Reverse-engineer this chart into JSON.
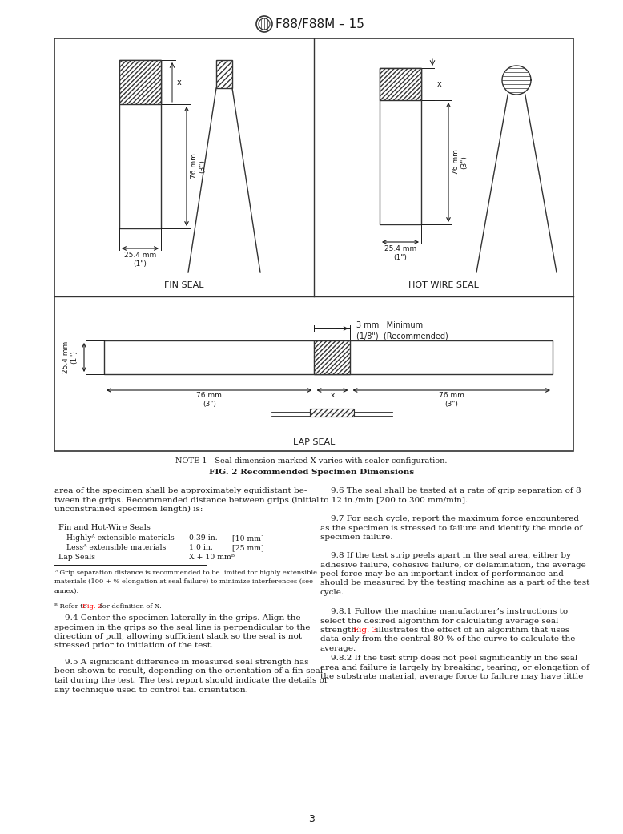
{
  "title": "F88/F88M – 15",
  "fig_caption_note": "NOTE 1—Seal dimension marked X varies with sealer configuration.",
  "fig_caption_bold": "FIG. 2 Recommended Specimen Dimensions",
  "fin_seal_label": "FIN SEAL",
  "hot_wire_label": "HOT WIRE SEAL",
  "lap_seal_label": "LAP SEAL",
  "page_number": "3",
  "text_col1_para1": "area of the specimen shall be approximately equidistant be-\ntween the grips. Recommended distance between grips (initial\nunconstrained specimen length) is:",
  "table_header": "Fin and Hot-Wire Seals",
  "table_row1_label": "Highlyᴬ extensible materials",
  "table_row1_v1": "0.39 in.",
  "table_row1_v2": "[10 mm]",
  "table_row2_label": "Lessᴬ extensible materials",
  "table_row2_v1": "1.0 in.",
  "table_row2_v2": "[25 mm]",
  "table_row3_label": "Lap Seals",
  "table_row3_v1": "X + 10 mmᴮ",
  "footnote_a": "ᴬ Grip separation distance is recommended to be limited for highly extensible\nmaterials (100 + % elongation at seal failure) to minimize interferences (see\nannex).",
  "footnote_b_pre": "ᴮ Refer to ",
  "footnote_b_red": "Fig. 2",
  "footnote_b_post": " for definition of X.",
  "text_col1_para2": "    9.4 Center the specimen laterally in the grips. Align the\nspecimen in the grips so the seal line is perpendicular to the\ndirection of pull, allowing sufficient slack so the seal is not\nstressed prior to initiation of the test.",
  "text_col1_para3": "    9.5 A significant difference in measured seal strength has\nbeen shown to result, depending on the orientation of a fin-seal\ntail during the test. The test report should indicate the details of\nany technique used to control tail orientation.",
  "text_col2_para1": "    9.6 The seal shall be tested at a rate of grip separation of 8\nto 12 in./min [200 to 300 mm/min].",
  "text_col2_para2": "    9.7 For each cycle, report the maximum force encountered\nas the specimen is stressed to failure and identify the mode of\nspecimen failure.",
  "text_col2_para3": "    9.8 If the test strip peels apart in the seal area, either by\nadhesive failure, cohesive failure, or delamination, the average\npeel force may be an important index of performance and\nshould be measured by the testing machine as a part of the test\ncycle.",
  "text_col2_para4a": "    9.8.1 Follow the machine manufacturer’s instructions to\nselect the desired algorithm for calculating average seal\nstrength. ",
  "text_col2_para4b": "Fig. 3",
  "text_col2_para4c": " illustrates the effect of an algorithm that uses\ndata only from the central 80 % of the curve to calculate the\naverage.",
  "text_col2_para5": "    9.8.2 If the test strip does not peel significantly in the seal\narea and failure is largely by breaking, tearing, or elongation of\nthe substrate material, average force to failure may have little",
  "background_color": "#ffffff",
  "text_color": "#1a1a1a",
  "border_color": "#333333"
}
